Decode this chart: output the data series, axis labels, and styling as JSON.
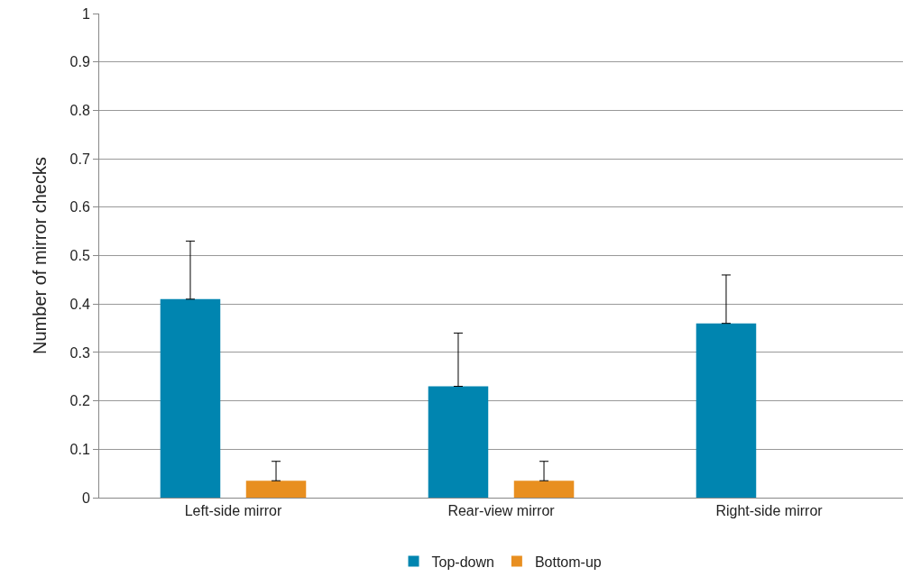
{
  "chart_data": {
    "type": "bar",
    "ylabel": "Number of mirror checks",
    "categories": [
      "Left-side mirror",
      "Rear-view mirror",
      "Right-side mirror"
    ],
    "series": [
      {
        "name": "Top-down",
        "color": "#0085b0",
        "values": [
          0.41,
          0.23,
          0.36
        ],
        "errors": [
          [
            0.41,
            0.53
          ],
          [
            0.23,
            0.34
          ],
          [
            0.36,
            0.46
          ]
        ]
      },
      {
        "name": "Bottom-up",
        "color": "#e88f20",
        "values": [
          0.035,
          0.035,
          null
        ],
        "errors": [
          [
            0.035,
            0.075
          ],
          [
            0.035,
            0.075
          ],
          null
        ]
      }
    ],
    "ylim": [
      0,
      1
    ],
    "yticks": [
      0,
      0.1,
      0.2,
      0.3,
      0.4,
      0.5,
      0.6,
      0.7,
      0.8,
      0.9,
      1
    ],
    "grid": "y",
    "legend": "bottom"
  }
}
